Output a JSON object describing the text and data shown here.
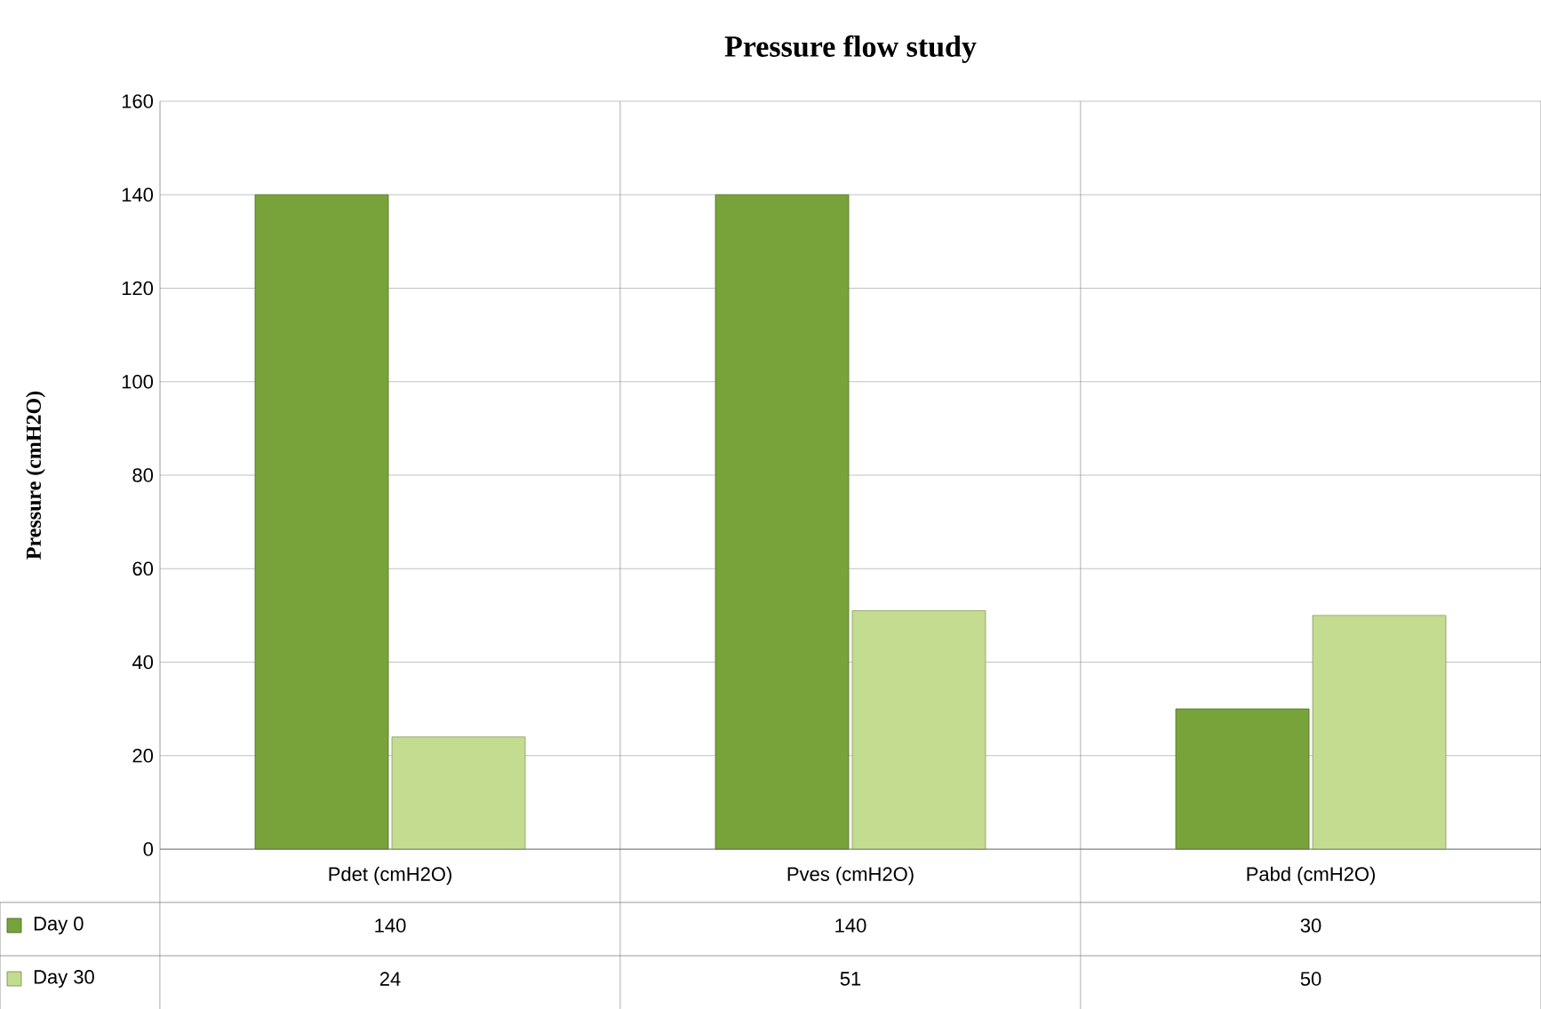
{
  "chart_data": {
    "type": "bar",
    "title": "Pressure flow study",
    "ylabel": "Pressure (cmH2O)",
    "categories": [
      "Pdet (cmH2O)",
      "Pves (cmH2O)",
      "Pabd (cmH2O)"
    ],
    "series": [
      {
        "name": "Day 0",
        "color": "#77a33a",
        "values": [
          140,
          140,
          30
        ]
      },
      {
        "name": "Day 30",
        "color": "#c3dc8f",
        "values": [
          24,
          51,
          50
        ]
      }
    ],
    "ylim": [
      0,
      160
    ],
    "yticks": [
      0,
      20,
      40,
      60,
      80,
      100,
      120,
      140,
      160
    ],
    "grid": "y",
    "legend": "bottom",
    "data_labels": true
  }
}
